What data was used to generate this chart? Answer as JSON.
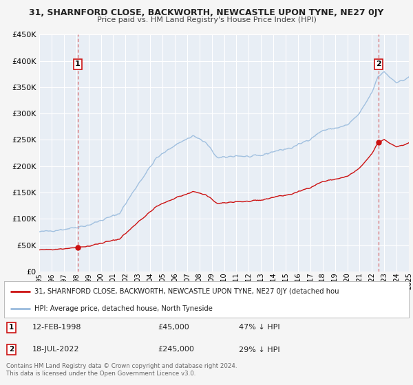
{
  "title": "31, SHARNFORD CLOSE, BACKWORTH, NEWCASTLE UPON TYNE, NE27 0JY",
  "subtitle": "Price paid vs. HM Land Registry's House Price Index (HPI)",
  "bg_color": "#f5f5f5",
  "plot_bg_color": "#e8eef5",
  "grid_color": "#ffffff",
  "hpi_color": "#99bbdd",
  "price_color": "#cc1111",
  "sale1_date_x": 1998.12,
  "sale1_price": 45000,
  "sale2_date_x": 2022.54,
  "sale2_price": 245000,
  "ylim": [
    0,
    450000
  ],
  "xlim": [
    1995,
    2025
  ],
  "yticks": [
    0,
    50000,
    100000,
    150000,
    200000,
    250000,
    300000,
    350000,
    400000,
    450000
  ],
  "xticks": [
    1995,
    1996,
    1997,
    1998,
    1999,
    2000,
    2001,
    2002,
    2003,
    2004,
    2005,
    2006,
    2007,
    2008,
    2009,
    2010,
    2011,
    2012,
    2013,
    2014,
    2015,
    2016,
    2017,
    2018,
    2019,
    2020,
    2021,
    2022,
    2023,
    2024,
    2025
  ],
  "legend_label_price": "31, SHARNFORD CLOSE, BACKWORTH, NEWCASTLE UPON TYNE, NE27 0JY (detached hou",
  "legend_label_hpi": "HPI: Average price, detached house, North Tyneside",
  "footer": "Contains HM Land Registry data © Crown copyright and database right 2024.\nThis data is licensed under the Open Government Licence v3.0."
}
